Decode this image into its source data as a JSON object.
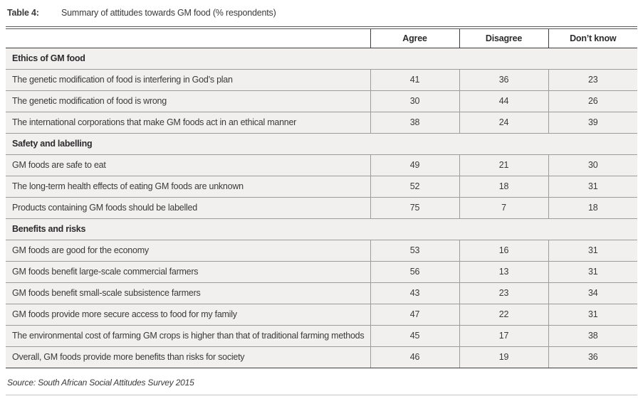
{
  "title": {
    "label": "Table 4:",
    "text": "Summary of attitudes towards GM food (% respondents)"
  },
  "table": {
    "columns": [
      "",
      "Agree",
      "Disagree",
      "Don’t know"
    ],
    "sections": [
      {
        "header": "Ethics of GM food",
        "rows": [
          {
            "statement": "The genetic modification of food is interfering in God’s plan",
            "agree": 41,
            "disagree": 36,
            "dont_know": 23
          },
          {
            "statement": "The genetic modification of food is wrong",
            "agree": 30,
            "disagree": 44,
            "dont_know": 26
          },
          {
            "statement": "The international corporations that make GM foods act in an ethical manner",
            "agree": 38,
            "disagree": 24,
            "dont_know": 39
          }
        ]
      },
      {
        "header": "Safety and labelling",
        "rows": [
          {
            "statement": "GM foods are safe to eat",
            "agree": 49,
            "disagree": 21,
            "dont_know": 30
          },
          {
            "statement": "The long-term health effects of eating GM foods are unknown",
            "agree": 52,
            "disagree": 18,
            "dont_know": 31
          },
          {
            "statement": "Products containing GM foods should be labelled",
            "agree": 75,
            "disagree": 7,
            "dont_know": 18
          }
        ]
      },
      {
        "header": "Benefits and risks",
        "rows": [
          {
            "statement": "GM foods are good for the economy",
            "agree": 53,
            "disagree": 16,
            "dont_know": 31
          },
          {
            "statement": "GM foods benefit large-scale commercial farmers",
            "agree": 56,
            "disagree": 13,
            "dont_know": 31
          },
          {
            "statement": "GM foods benefit small-scale subsistence farmers",
            "agree": 43,
            "disagree": 23,
            "dont_know": 34
          },
          {
            "statement": "GM foods provide more secure access to food for my family",
            "agree": 47,
            "disagree": 22,
            "dont_know": 31
          },
          {
            "statement": "The environmental cost of farming GM crops is higher than that of traditional farming methods",
            "agree": 45,
            "disagree": 17,
            "dont_know": 38
          },
          {
            "statement": "Overall, GM foods provide more benefits than risks for society",
            "agree": 46,
            "disagree": 19,
            "dont_know": 36
          }
        ]
      }
    ]
  },
  "source": "Source: South African Social Attitudes Survey 2015",
  "colors": {
    "row_background": "#f1f0ee",
    "border_light": "#9c9c9c",
    "border_dark": "#3d3d3f",
    "text": "#3a3a3a"
  }
}
